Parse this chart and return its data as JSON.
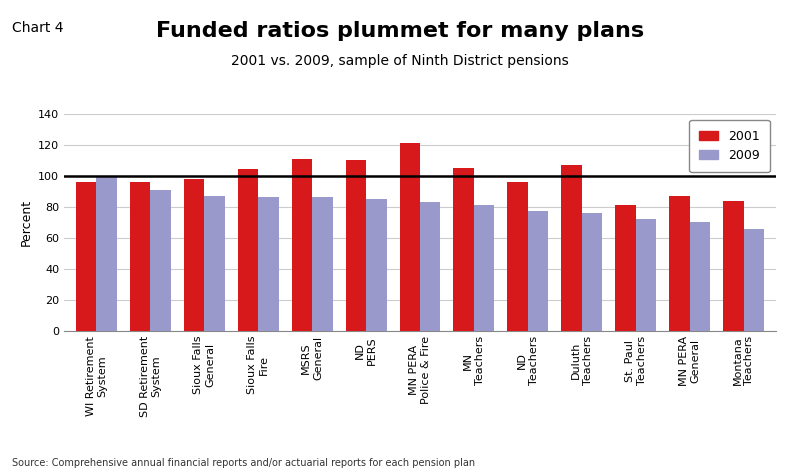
{
  "title": "Funded ratios plummet for many plans",
  "subtitle": "2001 vs. 2009, sample of Ninth District pensions",
  "chart_label": "Chart 4",
  "source": "Source: Comprehensive annual financial reports and/or actuarial reports for each pension plan",
  "ylabel": "Percent",
  "ylim": [
    0,
    140
  ],
  "yticks": [
    0,
    20,
    40,
    60,
    80,
    100,
    120,
    140
  ],
  "categories": [
    "WI Retirement\nSystem",
    "SD Retirement\nSystem",
    "Sioux Falls\nGeneral",
    "Sioux Falls\nFire",
    "MSRS\nGeneral",
    "ND\nPERS",
    "MN PERA\nPolice & Fire",
    "MN\nTeachers",
    "ND\nTeachers",
    "Duluth\nTeachers",
    "St. Paul\nTeachers",
    "MN PERA\nGeneral",
    "Montana\nTeachers"
  ],
  "values_2001": [
    96,
    96,
    98,
    104,
    111,
    110,
    121,
    105,
    96,
    107,
    81,
    87,
    84
  ],
  "values_2009": [
    100,
    91,
    87,
    86,
    86,
    85,
    83,
    81,
    77,
    76,
    72,
    70,
    66
  ],
  "color_2001": "#d7191c",
  "color_2009": "#9999cc",
  "reference_line": 100,
  "bar_width": 0.38,
  "background_color": "#ffffff",
  "grid_color": "#cccccc",
  "title_fontsize": 16,
  "subtitle_fontsize": 10,
  "chart_label_fontsize": 10,
  "axis_fontsize": 9,
  "tick_fontsize": 8,
  "legend_fontsize": 9,
  "source_fontsize": 7
}
